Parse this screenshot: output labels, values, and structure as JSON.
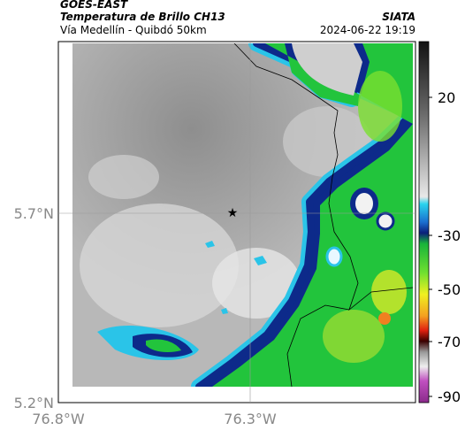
{
  "header": {
    "product": "GOES-EAST",
    "title": "Temperatura de Brillo CH13",
    "subtitle": "Vía Medellín - Quibdó 50km",
    "source": "SIATA",
    "datetime": "2024-06-22 19:19"
  },
  "axes": {
    "lat_labels": [
      "5.7°N",
      "5.2°N"
    ],
    "lon_labels": [
      "76.8°W",
      "76.3°W"
    ]
  },
  "colorbar": {
    "ticks": [
      20,
      -30,
      -50,
      -70,
      -90
    ]
  }
}
